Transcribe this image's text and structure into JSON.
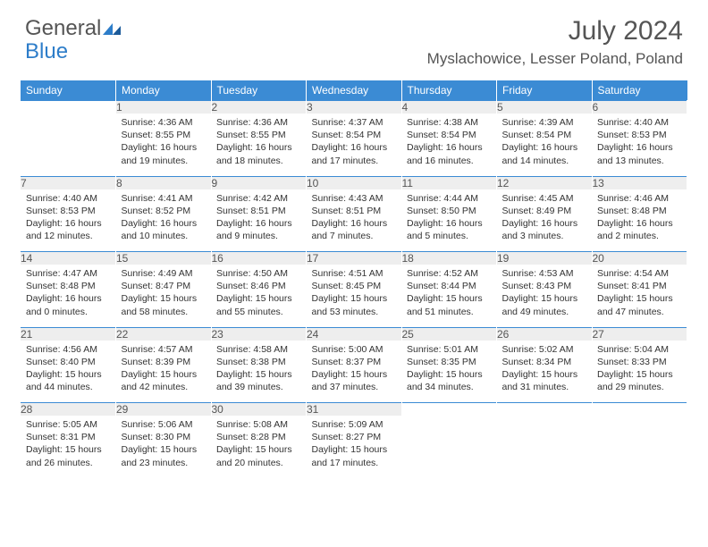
{
  "logo": {
    "text1": "General",
    "text2": "Blue"
  },
  "title": "July 2024",
  "location": "Myslachowice, Lesser Poland, Poland",
  "colors": {
    "header_bg": "#3b8bd4",
    "daynum_bg": "#eeeeee",
    "text": "#333333",
    "title": "#555555"
  },
  "weekdays": [
    "Sunday",
    "Monday",
    "Tuesday",
    "Wednesday",
    "Thursday",
    "Friday",
    "Saturday"
  ],
  "weeks": [
    [
      null,
      {
        "n": "1",
        "sr": "Sunrise: 4:36 AM",
        "ss": "Sunset: 8:55 PM",
        "dl": "Daylight: 16 hours and 19 minutes."
      },
      {
        "n": "2",
        "sr": "Sunrise: 4:36 AM",
        "ss": "Sunset: 8:55 PM",
        "dl": "Daylight: 16 hours and 18 minutes."
      },
      {
        "n": "3",
        "sr": "Sunrise: 4:37 AM",
        "ss": "Sunset: 8:54 PM",
        "dl": "Daylight: 16 hours and 17 minutes."
      },
      {
        "n": "4",
        "sr": "Sunrise: 4:38 AM",
        "ss": "Sunset: 8:54 PM",
        "dl": "Daylight: 16 hours and 16 minutes."
      },
      {
        "n": "5",
        "sr": "Sunrise: 4:39 AM",
        "ss": "Sunset: 8:54 PM",
        "dl": "Daylight: 16 hours and 14 minutes."
      },
      {
        "n": "6",
        "sr": "Sunrise: 4:40 AM",
        "ss": "Sunset: 8:53 PM",
        "dl": "Daylight: 16 hours and 13 minutes."
      }
    ],
    [
      {
        "n": "7",
        "sr": "Sunrise: 4:40 AM",
        "ss": "Sunset: 8:53 PM",
        "dl": "Daylight: 16 hours and 12 minutes."
      },
      {
        "n": "8",
        "sr": "Sunrise: 4:41 AM",
        "ss": "Sunset: 8:52 PM",
        "dl": "Daylight: 16 hours and 10 minutes."
      },
      {
        "n": "9",
        "sr": "Sunrise: 4:42 AM",
        "ss": "Sunset: 8:51 PM",
        "dl": "Daylight: 16 hours and 9 minutes."
      },
      {
        "n": "10",
        "sr": "Sunrise: 4:43 AM",
        "ss": "Sunset: 8:51 PM",
        "dl": "Daylight: 16 hours and 7 minutes."
      },
      {
        "n": "11",
        "sr": "Sunrise: 4:44 AM",
        "ss": "Sunset: 8:50 PM",
        "dl": "Daylight: 16 hours and 5 minutes."
      },
      {
        "n": "12",
        "sr": "Sunrise: 4:45 AM",
        "ss": "Sunset: 8:49 PM",
        "dl": "Daylight: 16 hours and 3 minutes."
      },
      {
        "n": "13",
        "sr": "Sunrise: 4:46 AM",
        "ss": "Sunset: 8:48 PM",
        "dl": "Daylight: 16 hours and 2 minutes."
      }
    ],
    [
      {
        "n": "14",
        "sr": "Sunrise: 4:47 AM",
        "ss": "Sunset: 8:48 PM",
        "dl": "Daylight: 16 hours and 0 minutes."
      },
      {
        "n": "15",
        "sr": "Sunrise: 4:49 AM",
        "ss": "Sunset: 8:47 PM",
        "dl": "Daylight: 15 hours and 58 minutes."
      },
      {
        "n": "16",
        "sr": "Sunrise: 4:50 AM",
        "ss": "Sunset: 8:46 PM",
        "dl": "Daylight: 15 hours and 55 minutes."
      },
      {
        "n": "17",
        "sr": "Sunrise: 4:51 AM",
        "ss": "Sunset: 8:45 PM",
        "dl": "Daylight: 15 hours and 53 minutes."
      },
      {
        "n": "18",
        "sr": "Sunrise: 4:52 AM",
        "ss": "Sunset: 8:44 PM",
        "dl": "Daylight: 15 hours and 51 minutes."
      },
      {
        "n": "19",
        "sr": "Sunrise: 4:53 AM",
        "ss": "Sunset: 8:43 PM",
        "dl": "Daylight: 15 hours and 49 minutes."
      },
      {
        "n": "20",
        "sr": "Sunrise: 4:54 AM",
        "ss": "Sunset: 8:41 PM",
        "dl": "Daylight: 15 hours and 47 minutes."
      }
    ],
    [
      {
        "n": "21",
        "sr": "Sunrise: 4:56 AM",
        "ss": "Sunset: 8:40 PM",
        "dl": "Daylight: 15 hours and 44 minutes."
      },
      {
        "n": "22",
        "sr": "Sunrise: 4:57 AM",
        "ss": "Sunset: 8:39 PM",
        "dl": "Daylight: 15 hours and 42 minutes."
      },
      {
        "n": "23",
        "sr": "Sunrise: 4:58 AM",
        "ss": "Sunset: 8:38 PM",
        "dl": "Daylight: 15 hours and 39 minutes."
      },
      {
        "n": "24",
        "sr": "Sunrise: 5:00 AM",
        "ss": "Sunset: 8:37 PM",
        "dl": "Daylight: 15 hours and 37 minutes."
      },
      {
        "n": "25",
        "sr": "Sunrise: 5:01 AM",
        "ss": "Sunset: 8:35 PM",
        "dl": "Daylight: 15 hours and 34 minutes."
      },
      {
        "n": "26",
        "sr": "Sunrise: 5:02 AM",
        "ss": "Sunset: 8:34 PM",
        "dl": "Daylight: 15 hours and 31 minutes."
      },
      {
        "n": "27",
        "sr": "Sunrise: 5:04 AM",
        "ss": "Sunset: 8:33 PM",
        "dl": "Daylight: 15 hours and 29 minutes."
      }
    ],
    [
      {
        "n": "28",
        "sr": "Sunrise: 5:05 AM",
        "ss": "Sunset: 8:31 PM",
        "dl": "Daylight: 15 hours and 26 minutes."
      },
      {
        "n": "29",
        "sr": "Sunrise: 5:06 AM",
        "ss": "Sunset: 8:30 PM",
        "dl": "Daylight: 15 hours and 23 minutes."
      },
      {
        "n": "30",
        "sr": "Sunrise: 5:08 AM",
        "ss": "Sunset: 8:28 PM",
        "dl": "Daylight: 15 hours and 20 minutes."
      },
      {
        "n": "31",
        "sr": "Sunrise: 5:09 AM",
        "ss": "Sunset: 8:27 PM",
        "dl": "Daylight: 15 hours and 17 minutes."
      },
      null,
      null,
      null
    ]
  ]
}
